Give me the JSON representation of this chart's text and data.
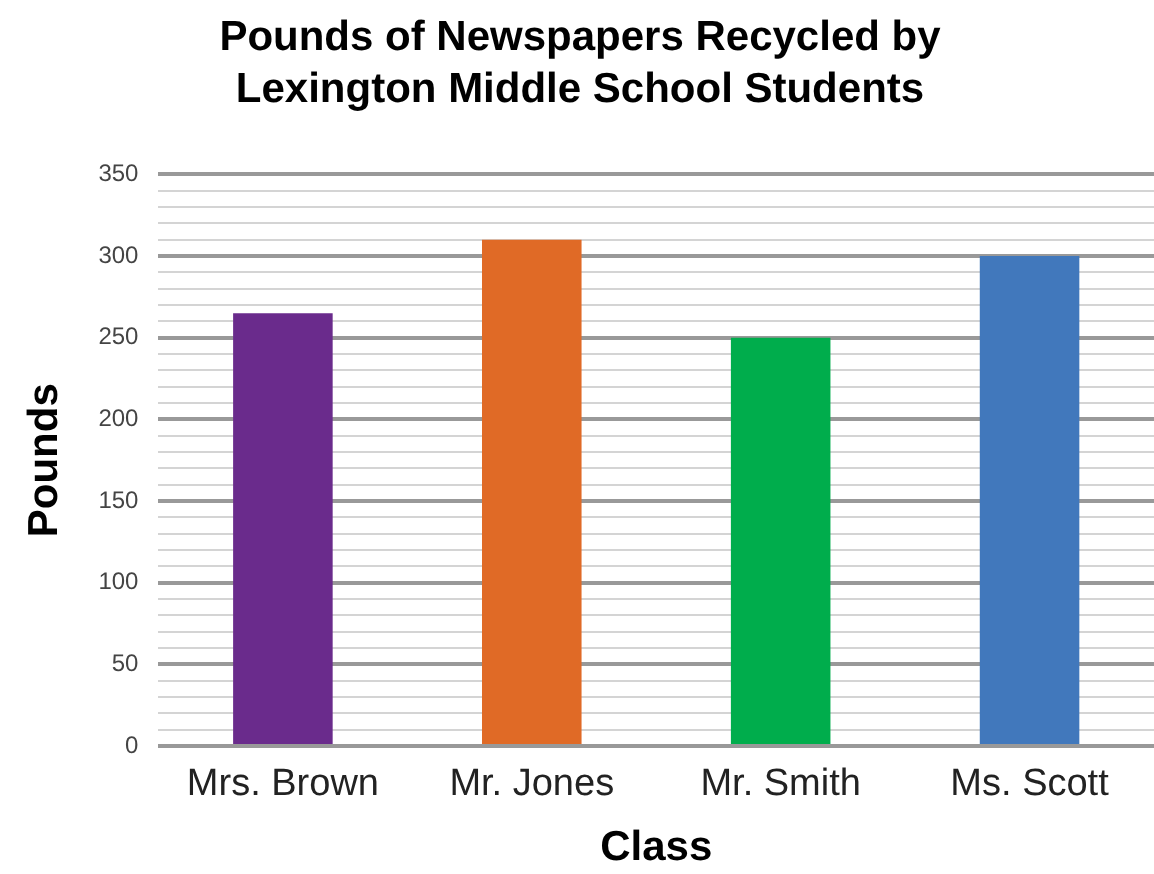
{
  "chart_data": {
    "type": "bar",
    "title": "Pounds of Newspapers Recycled by Lexington Middle School Students",
    "xlabel": "Class",
    "ylabel": "Pounds",
    "categories": [
      "Mrs. Brown",
      "Mr. Jones",
      "Mr. Smith",
      "Ms. Scott"
    ],
    "values": [
      265,
      310,
      250,
      300
    ],
    "colors": [
      "#6a2b8c",
      "#e06a26",
      "#00ad4c",
      "#4178bc"
    ],
    "ylim": [
      0,
      350
    ],
    "yticks": [
      0,
      {
        "value": 10,
        "label": null
      },
      {
        "value": 20,
        "label": null
      },
      {
        "value": 30,
        "label": null
      },
      {
        "value": 40,
        "label": null
      },
      50,
      {
        "value": 60,
        "label": null
      },
      {
        "value": 70,
        "label": null
      },
      {
        "value": 80,
        "label": null
      },
      {
        "value": 90,
        "label": null
      },
      100,
      {
        "value": 110,
        "label": null
      },
      {
        "value": 120,
        "label": null
      },
      {
        "value": 130,
        "label": null
      },
      {
        "value": 140,
        "label": null
      },
      150,
      {
        "value": 160,
        "label": null
      },
      {
        "value": 170,
        "label": null
      },
      {
        "value": 180,
        "label": null
      },
      {
        "value": 190,
        "label": null
      },
      200,
      {
        "value": 210,
        "label": null
      },
      {
        "value": 220,
        "label": null
      },
      {
        "value": 230,
        "label": null
      },
      {
        "value": 240,
        "label": null
      },
      250,
      {
        "value": 260,
        "label": null
      },
      {
        "value": 270,
        "label": null
      },
      {
        "value": 280,
        "label": null
      },
      {
        "value": 290,
        "label": null
      },
      300,
      {
        "value": 310,
        "label": null
      },
      {
        "value": 320,
        "label": null
      },
      {
        "value": 330,
        "label": null
      },
      {
        "value": 340,
        "label": null
      },
      350
    ],
    "grid": "y"
  }
}
